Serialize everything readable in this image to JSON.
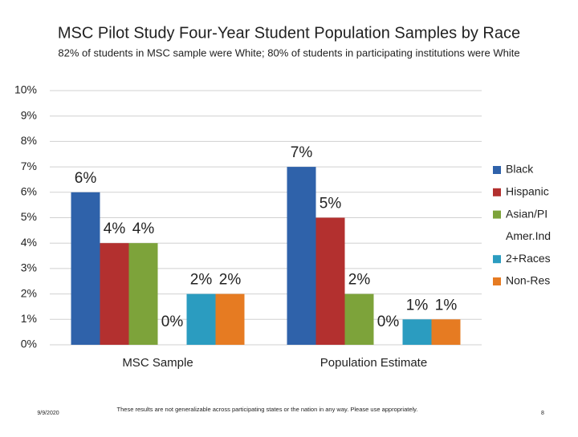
{
  "chart_data": {
    "type": "bar",
    "title": "MSC Pilot Study Four-Year Student Population Samples by Race",
    "subtitle": "82% of students in MSC sample were White; 80% of students in participating institutions were White",
    "categories": [
      "MSC Sample",
      "Population Estimate"
    ],
    "series": [
      {
        "name": "Black",
        "color": "#2f62aa",
        "values": [
          6,
          7
        ],
        "value_labels": [
          "6%",
          "7%"
        ]
      },
      {
        "name": "Hispanic",
        "color": "#b3302f",
        "values": [
          4,
          5
        ],
        "value_labels": [
          "4%",
          "5%"
        ]
      },
      {
        "name": "Asian/PI",
        "color": "#7da33a",
        "values": [
          4,
          2
        ],
        "value_labels": [
          "4%",
          "2%"
        ]
      },
      {
        "name": "Amer.Ind",
        "color": "#ffffff",
        "values": [
          0,
          0
        ],
        "value_labels": [
          "0%",
          "0%"
        ]
      },
      {
        "name": "2+Races",
        "color": "#2b9cc0",
        "values": [
          2,
          1
        ],
        "value_labels": [
          "2%",
          "1%"
        ]
      },
      {
        "name": "Non-Res",
        "color": "#e67b22",
        "values": [
          2,
          1
        ],
        "value_labels": [
          "2%",
          "1%"
        ]
      }
    ],
    "ylim": [
      0,
      10
    ],
    "yticks": [
      {
        "value": 0,
        "label": "0%"
      },
      {
        "value": 1,
        "label": "1%"
      },
      {
        "value": 2,
        "label": "2%"
      },
      {
        "value": 3,
        "label": "3%"
      },
      {
        "value": 4,
        "label": "4%"
      },
      {
        "value": 5,
        "label": "5%"
      },
      {
        "value": 6,
        "label": "6%"
      },
      {
        "value": 7,
        "label": "7%"
      },
      {
        "value": 8,
        "label": "8%"
      },
      {
        "value": 9,
        "label": "9%"
      },
      {
        "value": 10,
        "label": "10%"
      }
    ],
    "grid": true,
    "legend": "right"
  },
  "footer": {
    "date": "9/9/2020",
    "note": "These results are not generalizable across participating states or the nation in any way. Please use appropriately.",
    "page": "8"
  }
}
